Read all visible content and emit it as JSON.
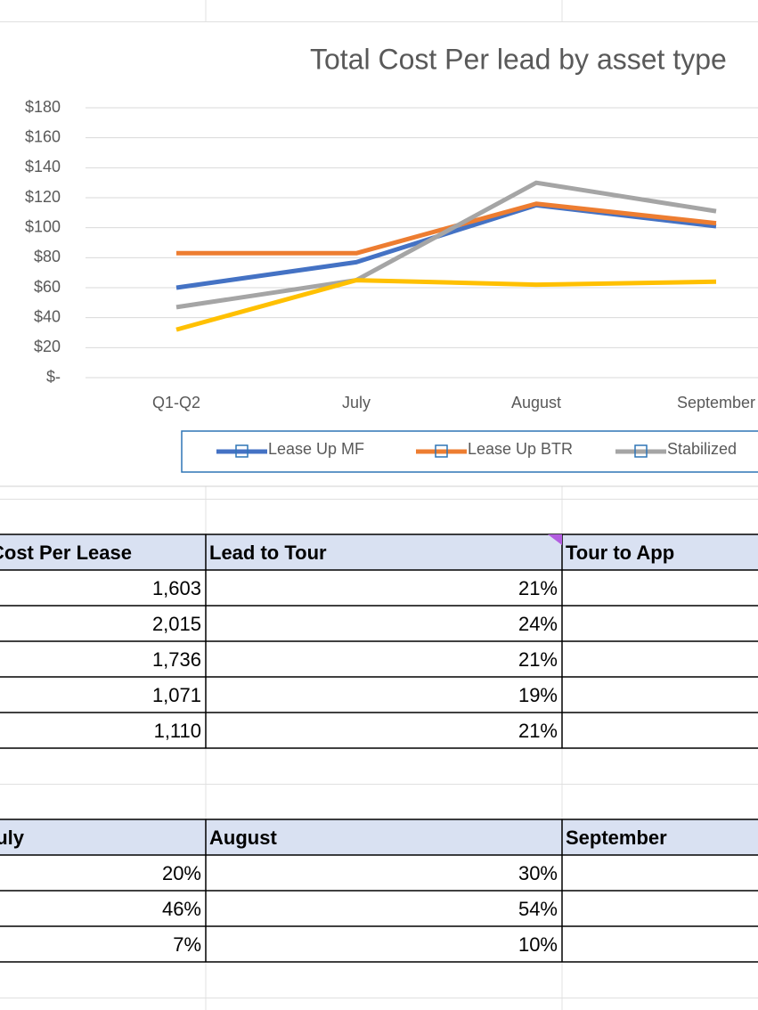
{
  "chart_data": {
    "type": "line",
    "title": "Total Cost Per lead by asset type",
    "categories": [
      "Q1-Q2",
      "July",
      "August",
      "September"
    ],
    "series": [
      {
        "name": "Lease Up MF",
        "color": "#4472c4",
        "values": [
          60,
          77,
          115,
          101
        ]
      },
      {
        "name": "Lease Up BTR",
        "color": "#ed7d31",
        "values": [
          83,
          83,
          116,
          103
        ]
      },
      {
        "name": "Stabilized",
        "color": "#a5a5a5",
        "values": [
          47,
          65,
          130,
          111
        ]
      },
      {
        "color": "#ffc000",
        "values": [
          32,
          65,
          62,
          64
        ]
      }
    ],
    "ylim": [
      0,
      180
    ],
    "yticks": [
      {
        "value": 0,
        "label": "$-"
      },
      {
        "value": 20,
        "label": "$20"
      },
      {
        "value": 40,
        "label": "$40"
      },
      {
        "value": 60,
        "label": "$60"
      },
      {
        "value": 80,
        "label": "$80"
      },
      {
        "value": 100,
        "label": "$100"
      },
      {
        "value": 120,
        "label": "$120"
      },
      {
        "value": 140,
        "label": "$140"
      },
      {
        "value": 160,
        "label": "$160"
      },
      {
        "value": 180,
        "label": "$180"
      }
    ],
    "grid": true,
    "legend": "bottom"
  },
  "tables": [
    {
      "header": [
        "Cost Per Lease",
        "Lead to Tour",
        "Tour to App"
      ],
      "rows": [
        [
          "1,603",
          "21%"
        ],
        [
          "2,015",
          "24%"
        ],
        [
          "1,736",
          "21%"
        ],
        [
          "1,071",
          "19%"
        ],
        [
          "1,110",
          "21%"
        ]
      ]
    },
    {
      "header": [
        "July",
        "August",
        "September"
      ],
      "rows": [
        [
          "20%",
          "30%"
        ],
        [
          "46%",
          "54%"
        ],
        [
          "7%",
          "10%"
        ]
      ]
    }
  ]
}
